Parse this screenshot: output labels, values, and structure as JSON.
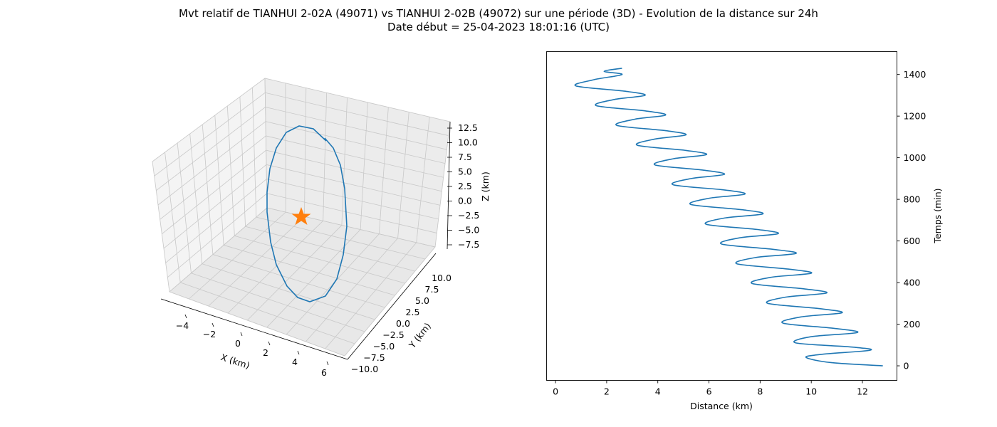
{
  "title": "Mvt relatif de TIANHUI 2-02A (49071) vs TIANHUI 2-02B (49072) sur une période (3D) - Evolution de la distance sur 24h",
  "subtitle": "Date début = 25-04-2023 18:01:16 (UTC)",
  "colors": {
    "line": "#1f77b4",
    "marker": "#ff7f0e"
  },
  "chart_data": [
    {
      "type": "line",
      "subtype": "3d",
      "xlabel": "X (km)",
      "ylabel": "Y (km)",
      "zlabel": "Z (km)",
      "x_ticks": [
        "−4",
        "−2",
        "0",
        "2",
        "4",
        "6"
      ],
      "y_ticks": [
        "−10.0",
        "−7.5",
        "−5.0",
        "−2.5",
        "0.0",
        "2.5",
        "5.0",
        "7.5",
        "10.0"
      ],
      "z_ticks": [
        "−7.5",
        "−5.0",
        "−2.5",
        "0.0",
        "2.5",
        "5.0",
        "7.5",
        "10.0",
        "12.5"
      ],
      "marker": {
        "shape": "star",
        "x": 0,
        "y": 0,
        "z": 0
      },
      "orbit": {
        "description": "closed relative-motion ellipse",
        "z_range": [
          -9.5,
          12.0
        ]
      }
    },
    {
      "type": "line",
      "xlabel": "Distance (km)",
      "ylabel": "Temps (min)",
      "xlim": [
        -0.35,
        13.35
      ],
      "ylim": [
        -70,
        1510
      ],
      "x_ticks": [
        0,
        2,
        4,
        6,
        8,
        10,
        12
      ],
      "y_ticks": [
        0,
        200,
        400,
        600,
        800,
        1000,
        1200,
        1400
      ],
      "series": [
        {
          "values_description": "distance vs time, damped-drift oscillation",
          "t_end": 1430,
          "period": 95,
          "points": [
            [
              12.8,
              0
            ],
            [
              10.8,
              15
            ],
            [
              9.8,
              40
            ],
            [
              10.4,
              55
            ],
            [
              12.3,
              75
            ],
            [
              11.6,
              90
            ],
            [
              9.4,
              110
            ],
            [
              10.0,
              140
            ],
            [
              11.8,
              160
            ],
            [
              10.9,
              180
            ],
            [
              8.9,
              205
            ],
            [
              9.6,
              235
            ],
            [
              11.2,
              255
            ],
            [
              10.3,
              275
            ],
            [
              8.3,
              300
            ],
            [
              9.0,
              330
            ],
            [
              10.6,
              350
            ],
            [
              9.7,
              370
            ],
            [
              7.7,
              395
            ],
            [
              8.4,
              425
            ],
            [
              10.0,
              445
            ],
            [
              9.1,
              465
            ],
            [
              7.1,
              490
            ],
            [
              7.8,
              520
            ],
            [
              9.4,
              540
            ],
            [
              8.5,
              560
            ],
            [
              6.5,
              585
            ],
            [
              7.2,
              615
            ],
            [
              8.7,
              635
            ],
            [
              7.9,
              655
            ],
            [
              5.9,
              680
            ],
            [
              6.6,
              710
            ],
            [
              8.1,
              730
            ],
            [
              7.3,
              750
            ],
            [
              5.3,
              775
            ],
            [
              6.0,
              805
            ],
            [
              7.4,
              825
            ],
            [
              6.6,
              845
            ],
            [
              4.6,
              870
            ],
            [
              5.3,
              900
            ],
            [
              6.6,
              920
            ],
            [
              5.8,
              940
            ],
            [
              3.9,
              965
            ],
            [
              4.6,
              995
            ],
            [
              5.9,
              1015
            ],
            [
              5.1,
              1035
            ],
            [
              3.2,
              1060
            ],
            [
              3.9,
              1090
            ],
            [
              5.1,
              1110
            ],
            [
              4.3,
              1130
            ],
            [
              2.4,
              1155
            ],
            [
              3.1,
              1185
            ],
            [
              4.3,
              1205
            ],
            [
              3.5,
              1225
            ],
            [
              1.6,
              1250
            ],
            [
              2.3,
              1280
            ],
            [
              3.5,
              1300
            ],
            [
              2.7,
              1320
            ],
            [
              0.8,
              1345
            ],
            [
              1.5,
              1375
            ],
            [
              2.6,
              1400
            ],
            [
              1.9,
              1415
            ],
            [
              2.6,
              1430
            ]
          ]
        }
      ]
    }
  ]
}
